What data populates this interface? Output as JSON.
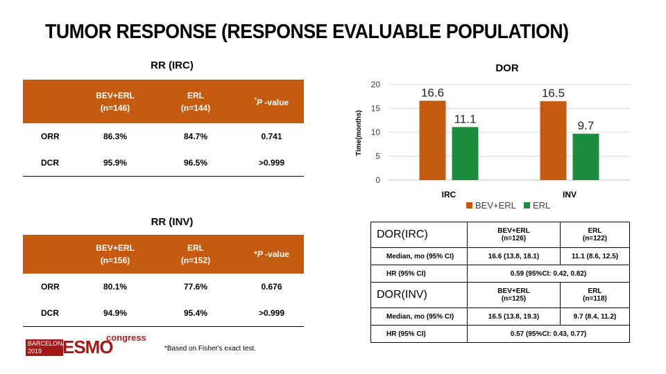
{
  "title": "TUMOR RESPONSE (RESPONSE EVALUABLE POPULATION)",
  "rr_irc": {
    "title": "RR (IRC)",
    "col1": "BEV+ERL",
    "col1_n": "(n=146)",
    "col2": "ERL",
    "col2_n": "(n=144)",
    "pv_star": "*",
    "pv_p": "P",
    "pv_rest": " -value",
    "rows": [
      {
        "label": "ORR",
        "v1": "86.3%",
        "v2": "84.7%",
        "p": "0.741"
      },
      {
        "label": "DCR",
        "v1": "95.9%",
        "v2": "96.5%",
        "p": ">0.999"
      }
    ]
  },
  "rr_inv": {
    "title": "RR (INV)",
    "col1": "BEV+ERL",
    "col1_n": "(n=156)",
    "col2": "ERL",
    "col2_n": "(n=152)",
    "pv_star": "*",
    "pv_p": "P",
    "pv_rest": " -value",
    "rows": [
      {
        "label": "ORR",
        "v1": "80.1%",
        "v2": "77.6%",
        "p": "0.676"
      },
      {
        "label": "DCR",
        "v1": "94.9%",
        "v2": "95.4%",
        "p": ">0.999"
      }
    ]
  },
  "chart_data": {
    "type": "bar",
    "title": "DOR",
    "ylabel": "Time(months)",
    "xlabel": "",
    "categories": [
      "IRC",
      "INV"
    ],
    "series": [
      {
        "name": "BEV+ERL",
        "values": [
          16.6,
          16.5
        ],
        "color": "#c55a11"
      },
      {
        "name": "ERL",
        "values": [
          11.1,
          9.7
        ],
        "color": "#1e8c3f"
      }
    ],
    "ylim": [
      0,
      20
    ],
    "yticks": [
      0,
      5,
      10,
      15,
      20
    ],
    "grid": true,
    "legend": "bottom"
  },
  "dor_table": {
    "irc": {
      "header": "DOR(IRC)",
      "col1": "BEV+ERL",
      "col1_n": "(n=126)",
      "col2": "ERL",
      "col2_n": "(n=122)",
      "median_label": "Median, mo (95% CI)",
      "median_1": "16.6 (13.8, 18.1)",
      "median_2": "11.1 (8.6, 12.5)",
      "hr_label": "HR  (95% CI)",
      "hr": "0.59 (95%CI: 0.42, 0.82)"
    },
    "inv": {
      "header": "DOR(INV)",
      "col1": "BEV+ERL",
      "col1_n": "(n=125)",
      "col2": "ERL",
      "col2_n": "(n=118)",
      "median_label": "Median, mo (95% CI)",
      "median_1": "16.5 (13.8, 19.3)",
      "median_2": "9.7 (8.4, 11.2)",
      "hr_label": "HR  (95% CI)",
      "hr": "0.57 (95%CI: 0.43, 0.77)"
    }
  },
  "footnote": "*Based on Fisher's exact test.",
  "logo": {
    "city": "BARCELONA",
    "year": "2019",
    "brand": "ESMO",
    "suffix": "congress"
  }
}
